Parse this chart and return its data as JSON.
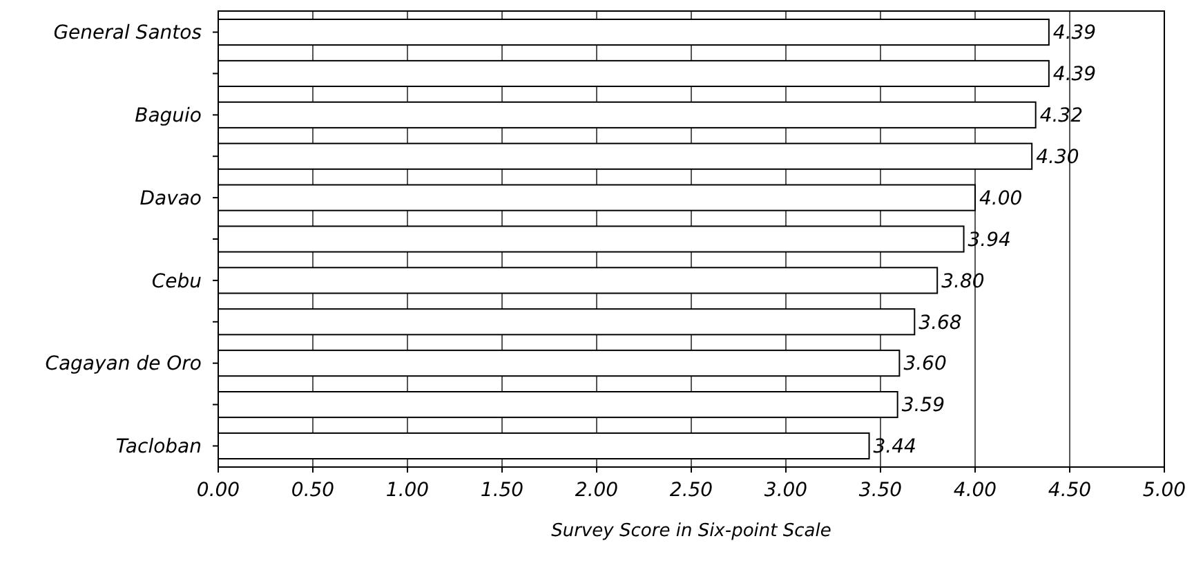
{
  "chart_data": {
    "type": "bar",
    "orientation": "horizontal",
    "xlabel": "Survey Score in Six-point Scale",
    "categories": [
      "General Santos",
      null,
      "Baguio",
      null,
      "Davao",
      null,
      "Cebu",
      null,
      "Cagayan de Oro",
      null,
      "Tacloban"
    ],
    "values": [
      4.39,
      4.39,
      4.32,
      4.3,
      4.0,
      3.94,
      3.8,
      3.68,
      3.6,
      3.59,
      3.44
    ],
    "value_labels": [
      "4.39",
      "4.39",
      "4.32",
      "4.30",
      "4.00",
      "3.94",
      "3.80",
      "3.68",
      "3.60",
      "3.59",
      "3.44"
    ],
    "color": "#ffffff",
    "xlim": [
      0,
      5
    ],
    "xticks": [
      {
        "value": 0,
        "label": "0.00"
      },
      {
        "value": 0.5,
        "label": "0.50"
      },
      {
        "value": 1,
        "label": "1.00"
      },
      {
        "value": 1.5,
        "label": "1.50"
      },
      {
        "value": 2,
        "label": "2.00"
      },
      {
        "value": 2.5,
        "label": "2.50"
      },
      {
        "value": 3,
        "label": "3.00"
      },
      {
        "value": 3.5,
        "label": "3.50"
      },
      {
        "value": 4,
        "label": "4.00"
      },
      {
        "value": 4.5,
        "label": "4.50"
      },
      {
        "value": 5,
        "label": "5.00"
      }
    ],
    "grid": "x"
  }
}
